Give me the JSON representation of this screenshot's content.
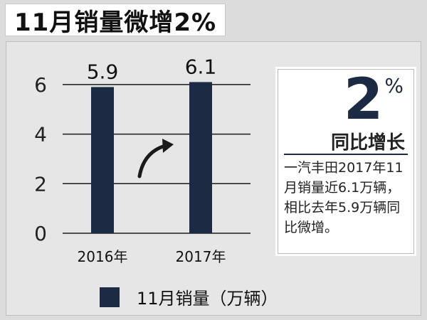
{
  "header": {
    "title": "11月销量微增2%"
  },
  "chart_data": {
    "type": "bar",
    "categories": [
      "2016年",
      "2017年"
    ],
    "values": [
      5.9,
      6.1
    ],
    "data_labels": [
      "5.9",
      "6.1"
    ],
    "ylim": [
      0,
      6.6
    ],
    "yticks": [
      0,
      2,
      4,
      6
    ],
    "grid": true,
    "legend": {
      "label": "11月销量（万辆）",
      "placement": "bottom"
    },
    "bar_color": "#1c2a44"
  },
  "infobox": {
    "percent_value": "2",
    "percent_sign": "%",
    "yoy_label": "同比增长",
    "description": "一汽丰田2017年11月销量近6.1万辆，相比去年5.9万辆同比微增。"
  },
  "icons": {
    "trend": "curved-arrow-up-right-icon"
  }
}
